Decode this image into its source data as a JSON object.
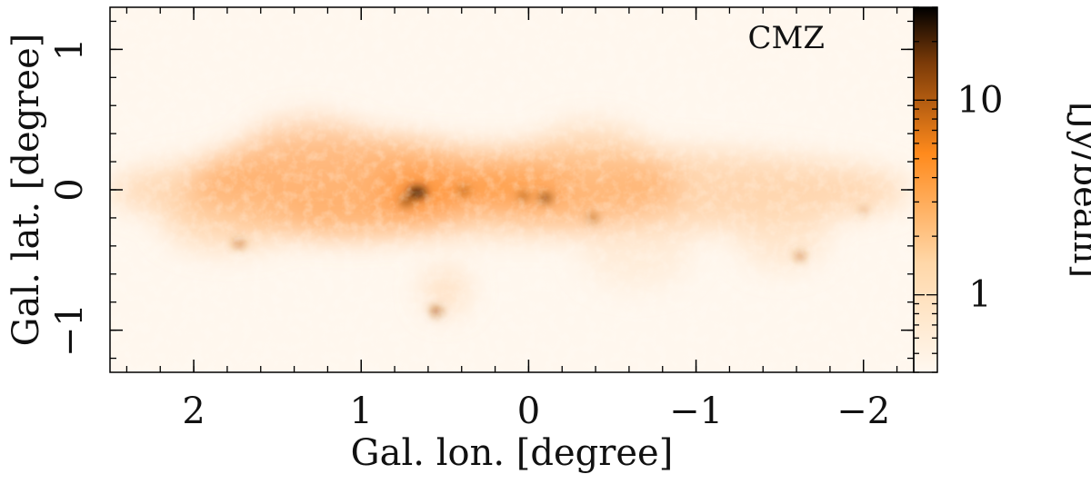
{
  "panel_label": "CMZ",
  "xaxis": {
    "label": "Gal. lon. [degree]",
    "range": [
      2.5,
      -2.3
    ],
    "ticks": [
      {
        "value": 2,
        "label": "2"
      },
      {
        "value": 1,
        "label": "1"
      },
      {
        "value": 0,
        "label": "0"
      },
      {
        "value": -1,
        "label": "−1"
      },
      {
        "value": -2,
        "label": "−2"
      }
    ],
    "minor_step": 0.2
  },
  "yaxis": {
    "label": "Gal. lat. [degree]",
    "range": [
      -1.3,
      1.3
    ],
    "ticks": [
      {
        "value": 1,
        "label": "1"
      },
      {
        "value": 0,
        "label": "0"
      },
      {
        "value": -1,
        "label": "−1"
      }
    ],
    "minor_step": 0.2
  },
  "colorbar": {
    "label": "[Jy/beam]",
    "scale": "log",
    "range": [
      0.4,
      30
    ],
    "ticks": [
      {
        "value": 1,
        "label": "1"
      },
      {
        "value": 10,
        "label": "10"
      }
    ],
    "colors": [
      "#fff8f0",
      "#ffd7a8",
      "#ff8a1c",
      "#7a3a08",
      "#000000"
    ]
  },
  "colors": {
    "background": "#fff7ee",
    "emission": "#ff8a1c",
    "peak": "#000000"
  }
}
